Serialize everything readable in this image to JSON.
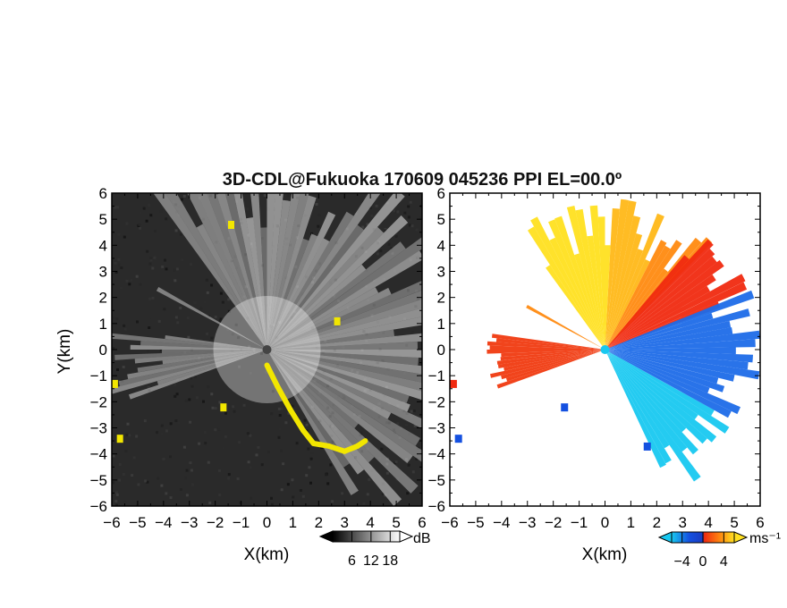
{
  "chart_data": [
    {
      "type": "heatmap",
      "panel": "left",
      "title": "3D-CDL@Fukuoka 170609 045236 PPI EL=00.0º",
      "xlabel": "X(km)",
      "ylabel": "Y(km)",
      "xlim": [
        -6,
        6
      ],
      "ylim": [
        -6,
        6
      ],
      "xticks": [
        "−6",
        "−5",
        "−4",
        "−3",
        "−2",
        "−1",
        "0",
        "1",
        "2",
        "3",
        "4",
        "5",
        "6"
      ],
      "yticks": [
        "−6",
        "−5",
        "−4",
        "−3",
        "−2",
        "−1",
        "0",
        "1",
        "2",
        "3",
        "4",
        "5",
        "6"
      ],
      "colorbar": {
        "label": "dB",
        "ticks": [
          "6",
          "12",
          "18"
        ],
        "range": [
          0,
          21
        ],
        "palette": "grayscale"
      },
      "colors": {
        "background": "#2a2a2a",
        "clutter": "#f2e600"
      }
    },
    {
      "type": "heatmap",
      "panel": "right",
      "xlabel": "X(km)",
      "ylabel": "",
      "xlim": [
        -6,
        6
      ],
      "ylim": [
        -6,
        6
      ],
      "xticks": [
        "−6",
        "−5",
        "−4",
        "−3",
        "−2",
        "−1",
        "0",
        "1",
        "2",
        "3",
        "4",
        "5",
        "6"
      ],
      "yticks": [
        "−6",
        "−5",
        "−4",
        "−3",
        "−2",
        "−1",
        "0",
        "1",
        "2",
        "3",
        "4",
        "5",
        "6"
      ],
      "colorbar": {
        "label": "ms⁻¹",
        "ticks": [
          "−4",
          "0",
          "4"
        ],
        "range": [
          -6,
          6
        ],
        "palette": "cyan-blue-red-yellow"
      },
      "colors": {
        "cyan": "#18c8f0",
        "blue": "#1450e0",
        "red": "#f02a10",
        "orange": "#ff8a10",
        "yellow": "#ffe020"
      }
    }
  ]
}
